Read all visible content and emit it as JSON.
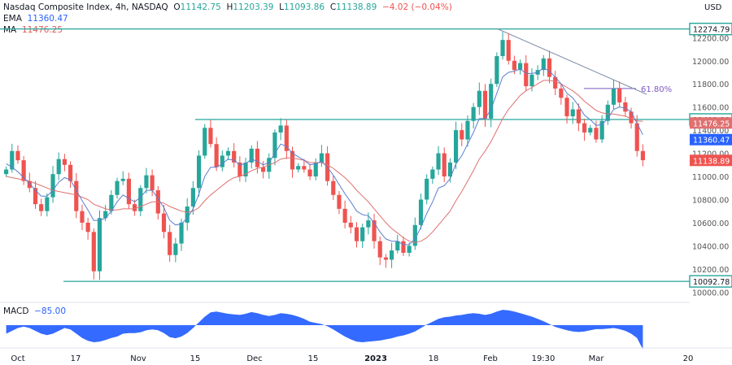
{
  "header": {
    "symbol": "Nasdaq Composite Index, 4h, NASDAQ",
    "open_label": "O",
    "open": "11142.75",
    "high_label": "H",
    "high": "11203.39",
    "low_label": "L",
    "low": "11093.86",
    "close_label": "C",
    "close": "11138.89",
    "change": "−4.02 (−0.04%)",
    "ema_label": "EMA",
    "ema_value": "11360.47",
    "ma_label": "MA",
    "ma_value": "11476.25",
    "macd_label": "MACD",
    "macd_value": "−85.00"
  },
  "colors": {
    "up": "#26a69a",
    "down": "#ef5350",
    "ema": "#5b7fcf",
    "ma": "#e07070",
    "level": "#26a69a",
    "trend": "#7f8fa6",
    "macd": "#2962ff",
    "fib": "#7e57c2"
  },
  "chart_data": {
    "type": "candlestick",
    "currency_label": "USD",
    "y_range": [
      9960,
      12420
    ],
    "y_ticks": [
      "12200.00",
      "12000.00",
      "11800.00",
      "11600.00",
      "11400.00",
      "11200.00",
      "11000.00",
      "10800.00",
      "10600.00",
      "10400.00",
      "10200.00",
      "10000.00"
    ],
    "x_ticks": [
      "Oct",
      "17",
      "Nov",
      "15",
      "Dec",
      "15",
      "2023",
      "18",
      "Feb",
      "19:30",
      "Mar",
      "20"
    ],
    "price_tags": [
      {
        "label": "12274.79",
        "value": 12274.79,
        "kind": "level"
      },
      {
        "label": "11492.29",
        "value": 11492.29,
        "kind": "level"
      },
      {
        "label": "11476.25",
        "value": 11476.25,
        "kind": "ma"
      },
      {
        "label": "11360.47",
        "value": 11360.47,
        "kind": "ema"
      },
      {
        "label": "11138.89",
        "value": 11138.89,
        "kind": "last"
      },
      {
        "label": "10092.78",
        "value": 10092.78,
        "kind": "level"
      }
    ],
    "horizontal_levels": [
      12274.79,
      11492.29,
      10092.78
    ],
    "fib_label": "61.80%",
    "fib_level": 11760,
    "closes": [
      11060,
      11220,
      11140,
      10960,
      10900,
      10760,
      10700,
      10820,
      11020,
      11150,
      11100,
      10960,
      10700,
      10600,
      10520,
      10180,
      10640,
      10700,
      10840,
      10960,
      10980,
      10760,
      10700,
      10900,
      11010,
      10880,
      10680,
      10520,
      10320,
      10420,
      10600,
      10740,
      10900,
      11180,
      11420,
      11280,
      11080,
      11180,
      11220,
      11120,
      11000,
      11120,
      11240,
      11080,
      11040,
      11160,
      11380,
      11440,
      11220,
      11060,
      11090,
      11060,
      11000,
      11120,
      11200,
      10960,
      10840,
      10720,
      10600,
      10560,
      10440,
      10560,
      10620,
      10440,
      10300,
      10280,
      10360,
      10440,
      10340,
      10400,
      10580,
      10800,
      10980,
      11060,
      11200,
      11000,
      11120,
      11400,
      11320,
      11480,
      11600,
      11740,
      11500,
      11800,
      12040,
      12180,
      12000,
      11920,
      11980,
      11780,
      11880,
      11920,
      12020,
      11860,
      11760,
      11680,
      11520,
      11580,
      11460,
      11380,
      11420,
      11320,
      11480,
      11620,
      11760,
      11640,
      11560,
      11460,
      11220,
      11140
    ],
    "ema": [
      11110,
      11080,
      11040,
      10990,
      10940,
      10880,
      10830,
      10830,
      10880,
      10950,
      10990,
      10970,
      10880,
      10790,
      10710,
      10620,
      10620,
      10640,
      10700,
      10780,
      10840,
      10810,
      10780,
      10820,
      10880,
      10880,
      10810,
      10730,
      10620,
      10580,
      10590,
      10640,
      10720,
      10850,
      11000,
      11080,
      11080,
      11110,
      11150,
      11140,
      11100,
      11110,
      11150,
      11130,
      11100,
      11120,
      11200,
      11280,
      11260,
      11200,
      11170,
      11140,
      11100,
      11110,
      11130,
      11080,
      11010,
      10930,
      10850,
      10780,
      10700,
      10670,
      10660,
      10600,
      10520,
      10460,
      10440,
      10440,
      10410,
      10410,
      10460,
      10560,
      10680,
      10780,
      10900,
      10920,
      10980,
      11110,
      11180,
      11280,
      11380,
      11500,
      11500,
      11580,
      11720,
      11860,
      11900,
      11910,
      11930,
      11890,
      11890,
      11900,
      11940,
      11910,
      11860,
      11800,
      11720,
      11680,
      11610,
      11530,
      11490,
      11440,
      11450,
      11500,
      11580,
      11600,
      11590,
      11560,
      11460,
      11360
    ],
    "ma": [
      11000,
      10990,
      10980,
      10970,
      10960,
      10940,
      10920,
      10900,
      10880,
      10870,
      10860,
      10850,
      10840,
      10820,
      10800,
      10760,
      10740,
      10720,
      10710,
      10710,
      10720,
      10720,
      10720,
      10740,
      10760,
      10780,
      10780,
      10770,
      10740,
      10720,
      10700,
      10690,
      10700,
      10730,
      10790,
      10840,
      10880,
      10920,
      10960,
      10990,
      11000,
      11020,
      11050,
      11070,
      11080,
      11100,
      11120,
      11150,
      11160,
      11160,
      11150,
      11140,
      11120,
      11120,
      11120,
      11100,
      11070,
      11030,
      10990,
      10940,
      10880,
      10830,
      10780,
      10720,
      10660,
      10600,
      10550,
      10510,
      10470,
      10440,
      10430,
      10440,
      10470,
      10520,
      10580,
      10640,
      10700,
      10790,
      10870,
      10960,
      11050,
      11150,
      11220,
      11300,
      11400,
      11500,
      11580,
      11640,
      11700,
      11740,
      11770,
      11800,
      11830,
      11830,
      11820,
      11800,
      11770,
      11740,
      11700,
      11650,
      11610,
      11570,
      11550,
      11540,
      11540,
      11530,
      11520,
      11500,
      11480,
      11476
    ],
    "macd": [
      -30,
      -20,
      -10,
      -5,
      -10,
      -20,
      -30,
      -35,
      -30,
      -20,
      -10,
      -15,
      -30,
      -45,
      -55,
      -60,
      -58,
      -52,
      -45,
      -40,
      -30,
      -28,
      -28,
      -25,
      -18,
      -15,
      -18,
      -28,
      -42,
      -46,
      -40,
      -28,
      -10,
      10,
      30,
      45,
      48,
      44,
      40,
      38,
      36,
      40,
      46,
      42,
      36,
      32,
      36,
      42,
      40,
      36,
      30,
      22,
      12,
      8,
      4,
      -4,
      -15,
      -28,
      -40,
      -50,
      -58,
      -60,
      -58,
      -56,
      -54,
      -50,
      -46,
      -40,
      -36,
      -30,
      -22,
      -10,
      2,
      12,
      22,
      28,
      30,
      34,
      36,
      40,
      42,
      40,
      36,
      40,
      48,
      54,
      52,
      48,
      42,
      36,
      30,
      22,
      14,
      4,
      -6,
      -12,
      -18,
      -22,
      -24,
      -22,
      -18,
      -14,
      -14,
      -12,
      -10,
      -14,
      -20,
      -30,
      -45,
      -85
    ]
  }
}
